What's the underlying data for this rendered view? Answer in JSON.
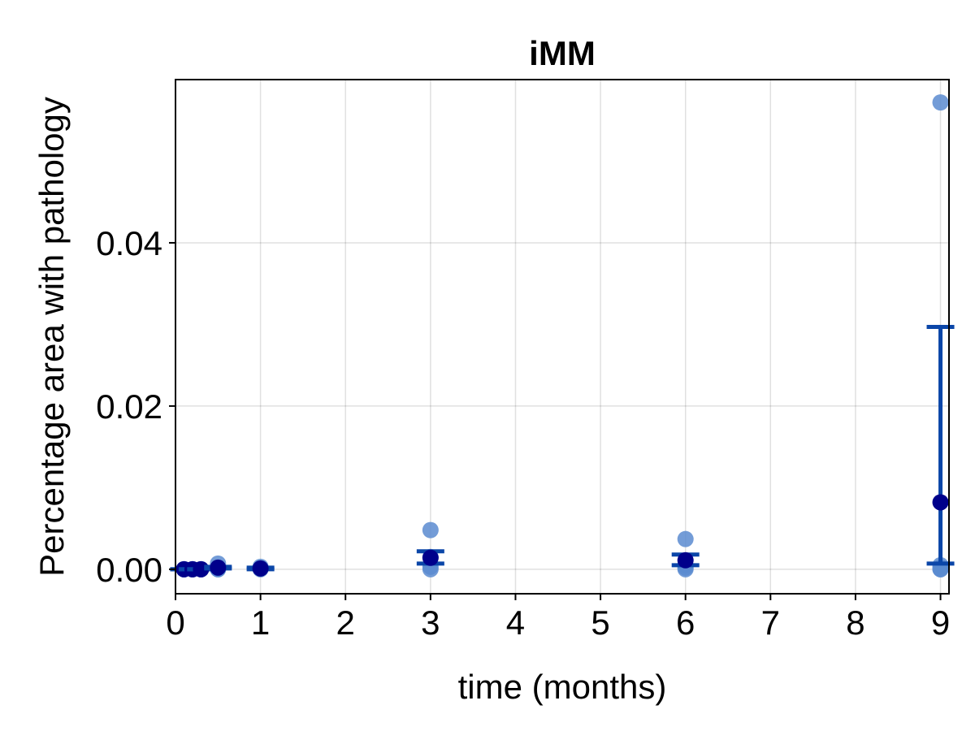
{
  "chart_data": {
    "type": "scatter",
    "title": "iMM",
    "xlabel": "time (months)",
    "ylabel": "Percentage area with pathology",
    "xlim": [
      0,
      9.1
    ],
    "ylim": [
      -0.003,
      0.06
    ],
    "x_ticks": [
      0,
      1,
      2,
      3,
      4,
      5,
      6,
      7,
      8,
      9
    ],
    "y_ticks": [
      0.0,
      0.02,
      0.04
    ],
    "y_tick_labels": [
      "0.00",
      "0.02",
      "0.04"
    ],
    "grid": true,
    "legend": "none",
    "points_color": "#5b8bd0",
    "mean_color": "#00008b",
    "errorbar_color": "#0b46a8",
    "points": [
      {
        "x": 0.1,
        "y": 0.0
      },
      {
        "x": 0.1,
        "y": 0.0
      },
      {
        "x": 0.1,
        "y": 0.0
      },
      {
        "x": 0.2,
        "y": 0.0
      },
      {
        "x": 0.2,
        "y": 0.0
      },
      {
        "x": 0.2,
        "y": 0.0
      },
      {
        "x": 0.3,
        "y": 0.0
      },
      {
        "x": 0.3,
        "y": 0.0
      },
      {
        "x": 0.3,
        "y": 0.0
      },
      {
        "x": 0.5,
        "y": 0.0007
      },
      {
        "x": 0.5,
        "y": 0.0002
      },
      {
        "x": 0.5,
        "y": 0.0
      },
      {
        "x": 0.5,
        "y": 0.0
      },
      {
        "x": 1,
        "y": 0.0003
      },
      {
        "x": 1,
        "y": 0.0001
      },
      {
        "x": 1,
        "y": 0.0
      },
      {
        "x": 3,
        "y": 0.0048
      },
      {
        "x": 3,
        "y": 0.0015
      },
      {
        "x": 3,
        "y": 0.0003
      },
      {
        "x": 3,
        "y": 0.0
      },
      {
        "x": 6,
        "y": 0.0037
      },
      {
        "x": 6,
        "y": 0.0005
      },
      {
        "x": 6,
        "y": 0.0002
      },
      {
        "x": 6,
        "y": 0.0
      },
      {
        "x": 9,
        "y": 0.0572
      },
      {
        "x": 9,
        "y": 0.0005
      },
      {
        "x": 9,
        "y": 0.0002
      },
      {
        "x": 9,
        "y": 0.0
      },
      {
        "x": 9,
        "y": 0.0
      }
    ],
    "summary": [
      {
        "x": 0.1,
        "mean": 0.0,
        "lower": 0.0,
        "upper": 0.0
      },
      {
        "x": 0.2,
        "mean": 0.0,
        "lower": 0.0,
        "upper": 0.0
      },
      {
        "x": 0.3,
        "mean": 0.0,
        "lower": 0.0,
        "upper": 0.0
      },
      {
        "x": 0.5,
        "mean": 0.0002,
        "lower": 0.0001,
        "upper": 0.0003
      },
      {
        "x": 1,
        "mean": 0.0001,
        "lower": 0.0,
        "upper": 0.0002
      },
      {
        "x": 3,
        "mean": 0.0014,
        "lower": 0.0007,
        "upper": 0.0022
      },
      {
        "x": 6,
        "mean": 0.0011,
        "lower": 0.0005,
        "upper": 0.0018
      },
      {
        "x": 9,
        "mean": 0.0082,
        "lower": 0.0007,
        "upper": 0.0297
      }
    ]
  }
}
